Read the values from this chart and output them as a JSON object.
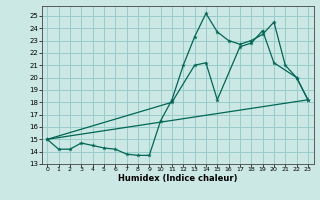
{
  "xlabel": "Humidex (Indice chaleur)",
  "bg_color": "#cce8e4",
  "grid_color": "#99cccc",
  "line_color": "#006655",
  "xlim": [
    -0.5,
    23.5
  ],
  "ylim": [
    13,
    25.8
  ],
  "xticks": [
    0,
    1,
    2,
    3,
    4,
    5,
    6,
    7,
    8,
    9,
    10,
    11,
    12,
    13,
    14,
    15,
    16,
    17,
    18,
    19,
    20,
    21,
    22,
    23
  ],
  "yticks": [
    13,
    14,
    15,
    16,
    17,
    18,
    19,
    20,
    21,
    22,
    23,
    24,
    25
  ],
  "line1_x": [
    0,
    1,
    2,
    3,
    4,
    5,
    6,
    7,
    8,
    9,
    10,
    11,
    12,
    13,
    14,
    15,
    16,
    17,
    18,
    19,
    20,
    21,
    22,
    23
  ],
  "line1_y": [
    15.0,
    14.2,
    14.2,
    14.7,
    14.5,
    14.3,
    14.2,
    13.8,
    13.7,
    13.7,
    16.5,
    18.2,
    21.0,
    23.3,
    25.2,
    23.7,
    23.0,
    22.7,
    23.0,
    23.5,
    24.5,
    21.0,
    20.0,
    18.2
  ],
  "line2_x": [
    0,
    23
  ],
  "line2_y": [
    15.0,
    18.2
  ],
  "line3_x": [
    0,
    11,
    13,
    14,
    15,
    17,
    18,
    19,
    20,
    22,
    23
  ],
  "line3_y": [
    15.0,
    18.0,
    21.0,
    21.2,
    18.2,
    22.5,
    22.8,
    23.8,
    21.2,
    20.0,
    18.2
  ]
}
